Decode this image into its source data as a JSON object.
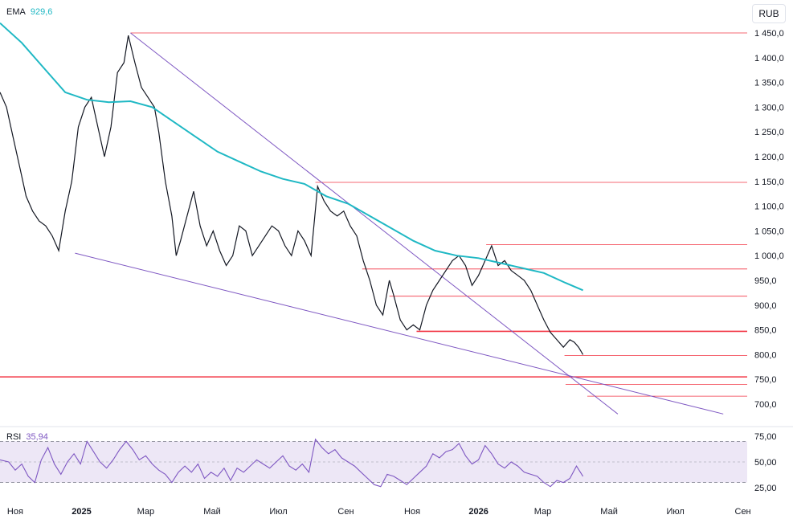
{
  "legend": {
    "ema_label": "EMA",
    "ema_value": "929,6",
    "rsi_label": "RSI",
    "rsi_value": "35,94"
  },
  "currency": "RUB",
  "colors": {
    "ema": "#1fb8c4",
    "candle": "#131722",
    "trend": "#7e57c2",
    "level": "#f23645",
    "rsi": "#7e57c2",
    "rsi_band": "#ede7f6"
  },
  "chart_data": [
    {
      "type": "line",
      "title": "Price (RUB) with EMA",
      "ylim": [
        650,
        1470
      ],
      "y_ticks": [
        "1 450,0",
        "1 400,0",
        "1 350,0",
        "1 300,0",
        "1 250,0",
        "1 200,0",
        "1 150,0",
        "1 100,0",
        "1 050,0",
        "1 000,0",
        "950,0",
        "900,0",
        "850,0",
        "800,0",
        "750,0",
        "700,0"
      ],
      "y_tick_values": [
        1450,
        1400,
        1350,
        1300,
        1250,
        1200,
        1150,
        1100,
        1050,
        1000,
        950,
        900,
        850,
        800,
        750,
        700
      ],
      "x_ticks": [
        "Ноя",
        "2025",
        "Мар",
        "Май",
        "Июл",
        "Сен",
        "Ноя",
        "2026",
        "Мар",
        "Май",
        "Июл",
        "Сен"
      ],
      "x_tick_days": [
        14,
        75,
        134,
        195,
        256,
        318,
        379,
        440,
        499,
        560,
        621,
        683
      ],
      "x_range_days": [
        0,
        687
      ],
      "price_points": [
        [
          0,
          1330
        ],
        [
          6,
          1300
        ],
        [
          12,
          1240
        ],
        [
          18,
          1180
        ],
        [
          24,
          1120
        ],
        [
          30,
          1090
        ],
        [
          36,
          1070
        ],
        [
          42,
          1060
        ],
        [
          48,
          1040
        ],
        [
          54,
          1010
        ],
        [
          60,
          1090
        ],
        [
          66,
          1150
        ],
        [
          72,
          1260
        ],
        [
          78,
          1300
        ],
        [
          84,
          1320
        ],
        [
          90,
          1260
        ],
        [
          96,
          1200
        ],
        [
          102,
          1260
        ],
        [
          108,
          1370
        ],
        [
          114,
          1390
        ],
        [
          118,
          1445
        ],
        [
          124,
          1390
        ],
        [
          130,
          1340
        ],
        [
          136,
          1320
        ],
        [
          142,
          1300
        ],
        [
          146,
          1250
        ],
        [
          152,
          1150
        ],
        [
          158,
          1080
        ],
        [
          162,
          1000
        ],
        [
          166,
          1030
        ],
        [
          172,
          1080
        ],
        [
          178,
          1130
        ],
        [
          184,
          1060
        ],
        [
          190,
          1020
        ],
        [
          196,
          1050
        ],
        [
          202,
          1010
        ],
        [
          208,
          980
        ],
        [
          214,
          1000
        ],
        [
          220,
          1060
        ],
        [
          226,
          1050
        ],
        [
          232,
          1000
        ],
        [
          238,
          1020
        ],
        [
          244,
          1040
        ],
        [
          250,
          1060
        ],
        [
          256,
          1050
        ],
        [
          262,
          1020
        ],
        [
          268,
          1000
        ],
        [
          274,
          1050
        ],
        [
          280,
          1030
        ],
        [
          286,
          1000
        ],
        [
          292,
          1140
        ],
        [
          298,
          1110
        ],
        [
          304,
          1090
        ],
        [
          310,
          1080
        ],
        [
          316,
          1090
        ],
        [
          322,
          1060
        ],
        [
          328,
          1040
        ],
        [
          334,
          990
        ],
        [
          340,
          950
        ],
        [
          346,
          900
        ],
        [
          352,
          880
        ],
        [
          358,
          950
        ],
        [
          362,
          920
        ],
        [
          368,
          870
        ],
        [
          374,
          850
        ],
        [
          380,
          860
        ],
        [
          386,
          850
        ],
        [
          392,
          900
        ],
        [
          398,
          930
        ],
        [
          404,
          950
        ],
        [
          410,
          970
        ],
        [
          416,
          990
        ],
        [
          422,
          1000
        ],
        [
          428,
          980
        ],
        [
          434,
          940
        ],
        [
          440,
          960
        ],
        [
          446,
          990
        ],
        [
          452,
          1020
        ],
        [
          458,
          980
        ],
        [
          464,
          990
        ],
        [
          470,
          970
        ],
        [
          476,
          960
        ],
        [
          482,
          950
        ],
        [
          488,
          930
        ],
        [
          494,
          900
        ],
        [
          500,
          870
        ],
        [
          506,
          845
        ],
        [
          512,
          830
        ],
        [
          518,
          815
        ],
        [
          524,
          830
        ],
        [
          528,
          825
        ],
        [
          532,
          815
        ],
        [
          536,
          800
        ]
      ],
      "ema_points": [
        [
          0,
          1470
        ],
        [
          20,
          1430
        ],
        [
          40,
          1380
        ],
        [
          60,
          1330
        ],
        [
          80,
          1315
        ],
        [
          100,
          1310
        ],
        [
          120,
          1312
        ],
        [
          140,
          1300
        ],
        [
          160,
          1270
        ],
        [
          180,
          1240
        ],
        [
          200,
          1210
        ],
        [
          220,
          1190
        ],
        [
          240,
          1170
        ],
        [
          260,
          1155
        ],
        [
          280,
          1145
        ],
        [
          300,
          1120
        ],
        [
          320,
          1105
        ],
        [
          340,
          1080
        ],
        [
          360,
          1055
        ],
        [
          380,
          1030
        ],
        [
          400,
          1010
        ],
        [
          420,
          1000
        ],
        [
          440,
          995
        ],
        [
          460,
          985
        ],
        [
          480,
          975
        ],
        [
          500,
          965
        ],
        [
          520,
          945
        ],
        [
          536,
          930
        ]
      ],
      "trendlines": [
        {
          "name": "upper-trendline",
          "from": [
            120,
            1450
          ],
          "to": [
            568,
            680
          ]
        },
        {
          "name": "lower-trendline",
          "from": [
            69,
            1005
          ],
          "to": [
            665,
            680
          ]
        }
      ],
      "level_lines": [
        {
          "name": "level-1450",
          "start_day": 120,
          "value": 1450,
          "style": "thin"
        },
        {
          "name": "level-1148",
          "start_day": 290,
          "value": 1148,
          "style": "thin"
        },
        {
          "name": "level-1022",
          "start_day": 447,
          "value": 1022,
          "style": "thin"
        },
        {
          "name": "level-973",
          "start_day": 333,
          "value": 973,
          "style": "thin"
        },
        {
          "name": "level-918",
          "start_day": 358,
          "value": 918,
          "style": "thin"
        },
        {
          "name": "level-847",
          "start_day": 383,
          "value": 847,
          "style": "thick"
        },
        {
          "name": "level-798",
          "start_day": 519,
          "value": 798,
          "style": "thin"
        },
        {
          "name": "level-755",
          "start_day": 0,
          "value": 755,
          "style": "thick"
        },
        {
          "name": "level-740",
          "start_day": 520,
          "value": 740,
          "style": "thin"
        },
        {
          "name": "level-716",
          "start_day": 540,
          "value": 716,
          "style": "thin"
        }
      ]
    },
    {
      "type": "line",
      "title": "RSI",
      "ylim": [
        15,
        80
      ],
      "y_ticks": [
        "75,00",
        "50,00",
        "25,00"
      ],
      "y_tick_values": [
        75,
        50,
        25
      ],
      "band": [
        30,
        70
      ],
      "midline": 50,
      "points": [
        [
          0,
          52
        ],
        [
          8,
          50
        ],
        [
          14,
          42
        ],
        [
          20,
          48
        ],
        [
          26,
          36
        ],
        [
          32,
          30
        ],
        [
          38,
          52
        ],
        [
          44,
          64
        ],
        [
          50,
          48
        ],
        [
          56,
          38
        ],
        [
          62,
          50
        ],
        [
          68,
          58
        ],
        [
          74,
          48
        ],
        [
          80,
          70
        ],
        [
          86,
          60
        ],
        [
          92,
          50
        ],
        [
          98,
          44
        ],
        [
          104,
          52
        ],
        [
          110,
          62
        ],
        [
          116,
          70
        ],
        [
          122,
          62
        ],
        [
          128,
          52
        ],
        [
          134,
          56
        ],
        [
          140,
          48
        ],
        [
          146,
          42
        ],
        [
          152,
          38
        ],
        [
          158,
          30
        ],
        [
          164,
          40
        ],
        [
          170,
          46
        ],
        [
          176,
          40
        ],
        [
          182,
          48
        ],
        [
          188,
          34
        ],
        [
          194,
          40
        ],
        [
          200,
          36
        ],
        [
          206,
          44
        ],
        [
          212,
          32
        ],
        [
          218,
          44
        ],
        [
          224,
          40
        ],
        [
          230,
          46
        ],
        [
          236,
          52
        ],
        [
          242,
          48
        ],
        [
          248,
          44
        ],
        [
          254,
          50
        ],
        [
          260,
          56
        ],
        [
          266,
          46
        ],
        [
          272,
          42
        ],
        [
          278,
          48
        ],
        [
          284,
          40
        ],
        [
          290,
          72
        ],
        [
          296,
          64
        ],
        [
          302,
          58
        ],
        [
          308,
          62
        ],
        [
          314,
          54
        ],
        [
          320,
          50
        ],
        [
          326,
          46
        ],
        [
          332,
          40
        ],
        [
          338,
          34
        ],
        [
          344,
          28
        ],
        [
          350,
          26
        ],
        [
          356,
          38
        ],
        [
          362,
          36
        ],
        [
          368,
          32
        ],
        [
          374,
          28
        ],
        [
          380,
          34
        ],
        [
          386,
          40
        ],
        [
          392,
          46
        ],
        [
          398,
          58
        ],
        [
          404,
          54
        ],
        [
          410,
          60
        ],
        [
          416,
          62
        ],
        [
          422,
          68
        ],
        [
          428,
          56
        ],
        [
          434,
          48
        ],
        [
          440,
          52
        ],
        [
          446,
          66
        ],
        [
          452,
          58
        ],
        [
          458,
          48
        ],
        [
          464,
          44
        ],
        [
          470,
          50
        ],
        [
          476,
          46
        ],
        [
          482,
          40
        ],
        [
          488,
          38
        ],
        [
          494,
          36
        ],
        [
          500,
          30
        ],
        [
          506,
          26
        ],
        [
          512,
          32
        ],
        [
          518,
          30
        ],
        [
          524,
          34
        ],
        [
          530,
          46
        ],
        [
          536,
          36
        ]
      ]
    }
  ]
}
